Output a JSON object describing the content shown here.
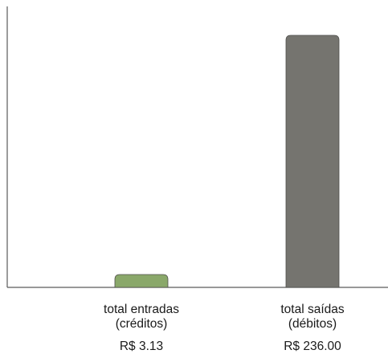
{
  "chart_data": {
    "type": "bar",
    "categories": [
      [
        "total entradas",
        "(créditos)"
      ],
      [
        "total saídas",
        "(débitos)"
      ]
    ],
    "values": [
      3.13,
      236.0
    ],
    "value_labels": [
      "R$ 3.13",
      "R$ 236.00"
    ],
    "bar_colors": [
      "#8aa86a",
      "#75746f"
    ],
    "ylim": [
      0,
      236
    ],
    "grid": false,
    "title": "",
    "xlabel": "",
    "ylabel": ""
  }
}
